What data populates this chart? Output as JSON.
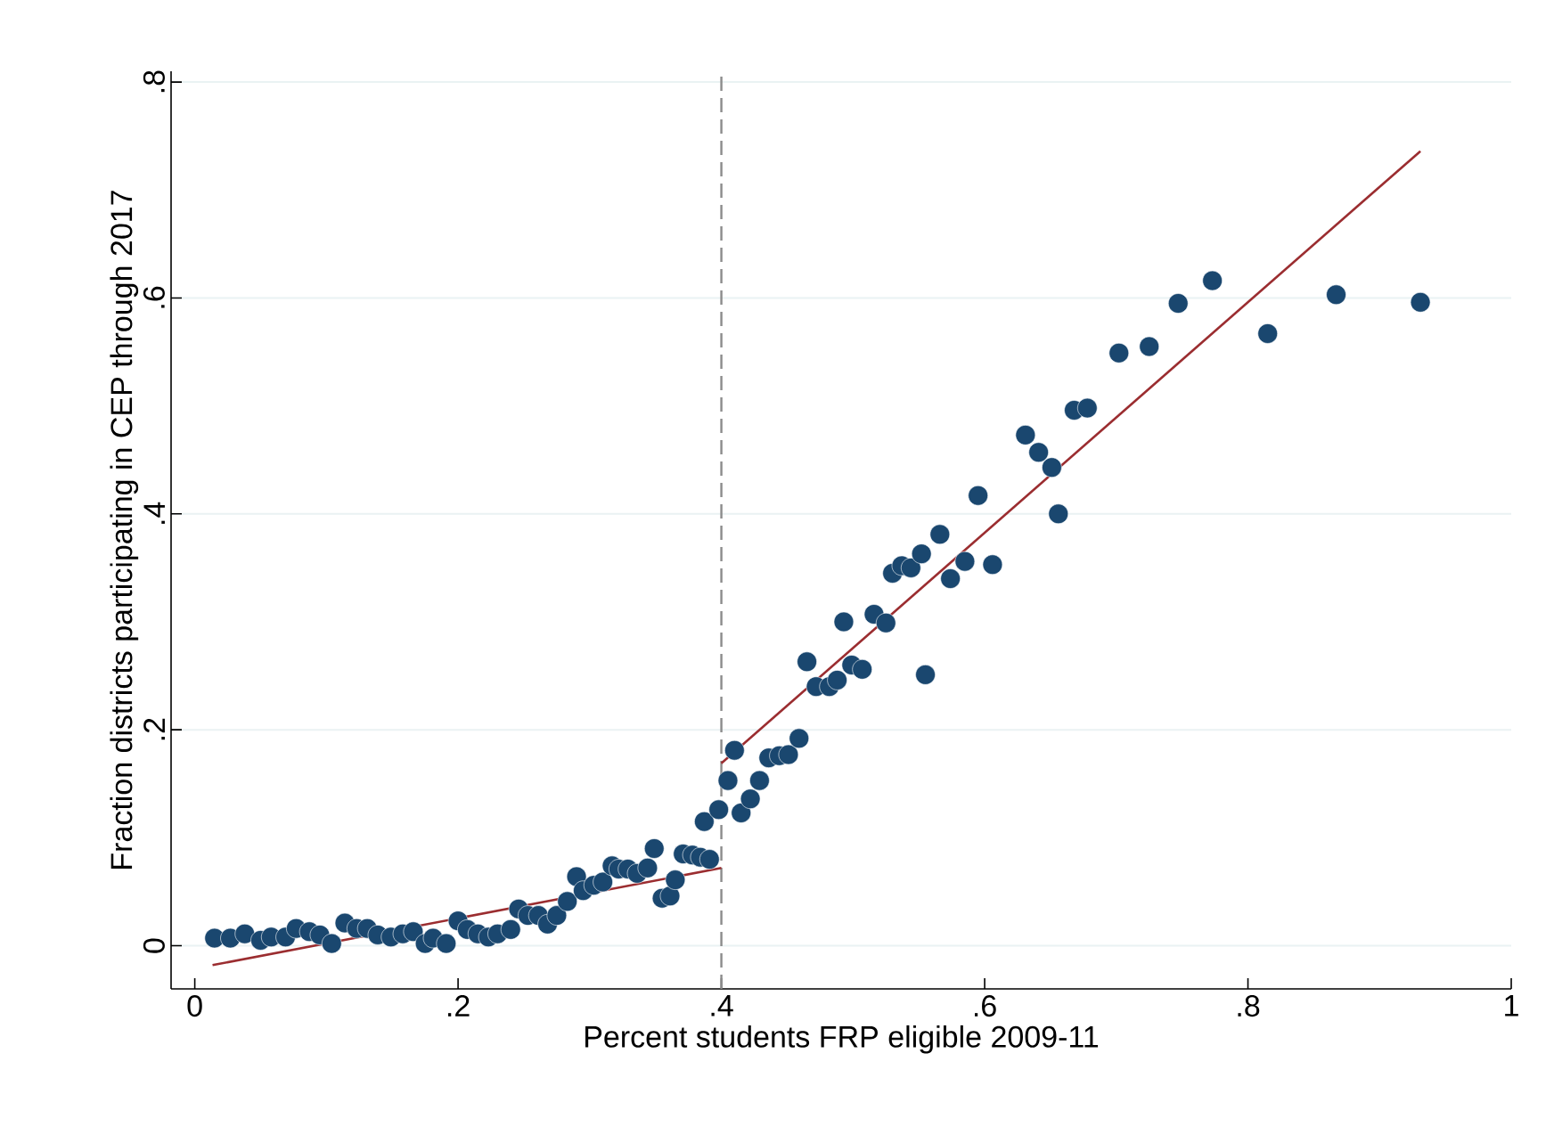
{
  "chart_data": {
    "type": "scatter",
    "xlabel": "Percent students FRP eligible 2009-11",
    "ylabel": "Fraction districts participating in CEP through 2017",
    "xlim": [
      -0.018,
      1.0
    ],
    "ylim": [
      -0.04,
      0.81
    ],
    "xticks": [
      {
        "value": 0,
        "label": "0"
      },
      {
        "value": 0.2,
        "label": ".2"
      },
      {
        "value": 0.4,
        "label": ".4"
      },
      {
        "value": 0.6,
        "label": ".6"
      },
      {
        "value": 0.8,
        "label": ".8"
      },
      {
        "value": 1,
        "label": "1"
      }
    ],
    "yticks": [
      {
        "value": 0,
        "label": "0"
      },
      {
        "value": 0.2,
        "label": ".2"
      },
      {
        "value": 0.4,
        "label": ".4"
      },
      {
        "value": 0.6,
        "label": ".6"
      },
      {
        "value": 0.8,
        "label": ".8"
      }
    ],
    "grid": "y",
    "ref_lines": [
      {
        "axis": "x",
        "value": 0.4,
        "color": "#8c8c8c",
        "line_style": "dashed"
      }
    ],
    "series": [
      {
        "color": "#1a476f",
        "marker": "circle",
        "x": [
          0.015,
          0.027,
          0.038,
          0.05,
          0.058,
          0.069,
          0.077,
          0.087,
          0.095,
          0.104,
          0.114,
          0.123,
          0.131,
          0.139,
          0.149,
          0.158,
          0.166,
          0.175,
          0.181,
          0.191,
          0.2,
          0.207,
          0.215,
          0.223,
          0.23,
          0.24,
          0.246,
          0.253,
          0.261,
          0.268,
          0.275,
          0.283,
          0.29,
          0.295,
          0.303,
          0.31,
          0.317,
          0.322,
          0.329,
          0.336,
          0.344,
          0.349,
          0.355,
          0.361,
          0.365,
          0.371,
          0.378,
          0.384,
          0.391,
          0.387,
          0.398,
          0.405,
          0.41,
          0.415,
          0.422,
          0.429,
          0.436,
          0.444,
          0.451,
          0.459,
          0.465,
          0.472,
          0.482,
          0.488,
          0.493,
          0.499,
          0.507,
          0.516,
          0.525,
          0.53,
          0.537,
          0.544,
          0.552,
          0.566,
          0.555,
          0.574,
          0.585,
          0.595,
          0.606,
          0.631,
          0.641,
          0.651,
          0.656,
          0.668,
          0.678,
          0.702,
          0.725,
          0.747,
          0.773,
          0.815,
          0.867,
          0.931
        ],
        "values": [
          0.007,
          0.007,
          0.011,
          0.005,
          0.008,
          0.008,
          0.016,
          0.013,
          0.01,
          0.002,
          0.021,
          0.016,
          0.016,
          0.01,
          0.008,
          0.011,
          0.013,
          0.002,
          0.007,
          0.002,
          0.023,
          0.015,
          0.011,
          0.008,
          0.011,
          0.015,
          0.034,
          0.028,
          0.028,
          0.02,
          0.028,
          0.041,
          0.064,
          0.051,
          0.056,
          0.059,
          0.074,
          0.071,
          0.071,
          0.067,
          0.072,
          0.09,
          0.044,
          0.046,
          0.061,
          0.085,
          0.084,
          0.082,
          0.08,
          0.115,
          0.126,
          0.153,
          0.181,
          0.123,
          0.136,
          0.153,
          0.174,
          0.176,
          0.177,
          0.192,
          0.263,
          0.24,
          0.24,
          0.246,
          0.3,
          0.26,
          0.256,
          0.307,
          0.299,
          0.345,
          0.352,
          0.35,
          0.363,
          0.381,
          0.251,
          0.34,
          0.356,
          0.417,
          0.353,
          0.473,
          0.457,
          0.443,
          0.4,
          0.496,
          0.498,
          0.549,
          0.555,
          0.595,
          0.616,
          0.567,
          0.603,
          0.596
        ]
      },
      {
        "type": "line",
        "color": "#9b2d30",
        "marker": "none",
        "line_style": "solid",
        "x": [
          0.0135,
          0.4
        ],
        "values": [
          -0.018,
          0.072
        ]
      },
      {
        "type": "line",
        "color": "#9b2d30",
        "marker": "none",
        "line_style": "solid",
        "x": [
          0.4,
          0.931
        ],
        "values": [
          0.169,
          0.736
        ]
      }
    ]
  }
}
